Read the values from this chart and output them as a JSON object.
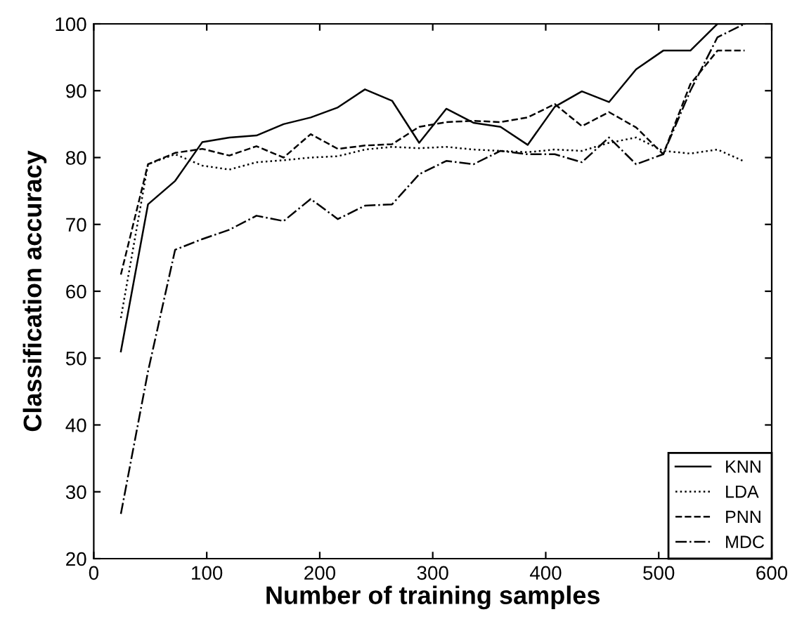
{
  "chart_data": {
    "type": "line",
    "xlabel": "Number of training samples",
    "ylabel": "Classification accuracy",
    "x": [
      24,
      48,
      72,
      96,
      120,
      144,
      168,
      192,
      216,
      240,
      264,
      288,
      312,
      336,
      360,
      384,
      408,
      432,
      456,
      480,
      504,
      528,
      552,
      576
    ],
    "series": [
      {
        "name": "KNN",
        "color": "#000000",
        "line_style": "solid",
        "values": [
          51,
          73,
          76.5,
          82.3,
          83,
          83.3,
          85,
          86,
          87.5,
          90.2,
          88.5,
          82.2,
          87.3,
          85.2,
          84.6,
          81.9,
          87.6,
          89.9,
          88.3,
          93.2,
          96,
          96,
          100,
          100
        ]
      },
      {
        "name": "LDA",
        "color": "#000000",
        "line_style": "dotted",
        "values": [
          56,
          79,
          80.5,
          78.8,
          78.2,
          79.3,
          79.6,
          80,
          80.2,
          81.2,
          81.6,
          81.4,
          81.6,
          81.2,
          81,
          80.8,
          81.2,
          81,
          82.2,
          83,
          81,
          80.6,
          81.2,
          79.4
        ]
      },
      {
        "name": "PNN",
        "color": "#000000",
        "line_style": "dashed",
        "values": [
          62.5,
          79,
          80.7,
          81.3,
          80.3,
          81.7,
          80,
          83.5,
          81.3,
          81.8,
          82,
          84.6,
          85.3,
          85.5,
          85.3,
          86,
          88,
          84.7,
          86.8,
          84.5,
          80.5,
          91,
          96,
          96
        ]
      },
      {
        "name": "MDC",
        "color": "#000000",
        "line_style": "dashdot",
        "values": [
          26.7,
          48,
          66.2,
          67.8,
          69.2,
          71.3,
          70.5,
          73.8,
          70.8,
          72.8,
          73,
          77.5,
          79.5,
          79,
          81,
          80.5,
          80.5,
          79.3,
          83,
          79,
          80.5,
          90,
          98,
          100
        ]
      }
    ],
    "xlim": [
      0,
      600
    ],
    "xticks": [
      0,
      100,
      200,
      300,
      400,
      500,
      600
    ],
    "ylim": [
      20,
      100
    ],
    "yticks": [
      20,
      30,
      40,
      50,
      60,
      70,
      80,
      90,
      100
    ],
    "legend": "lower right",
    "grid": false
  }
}
